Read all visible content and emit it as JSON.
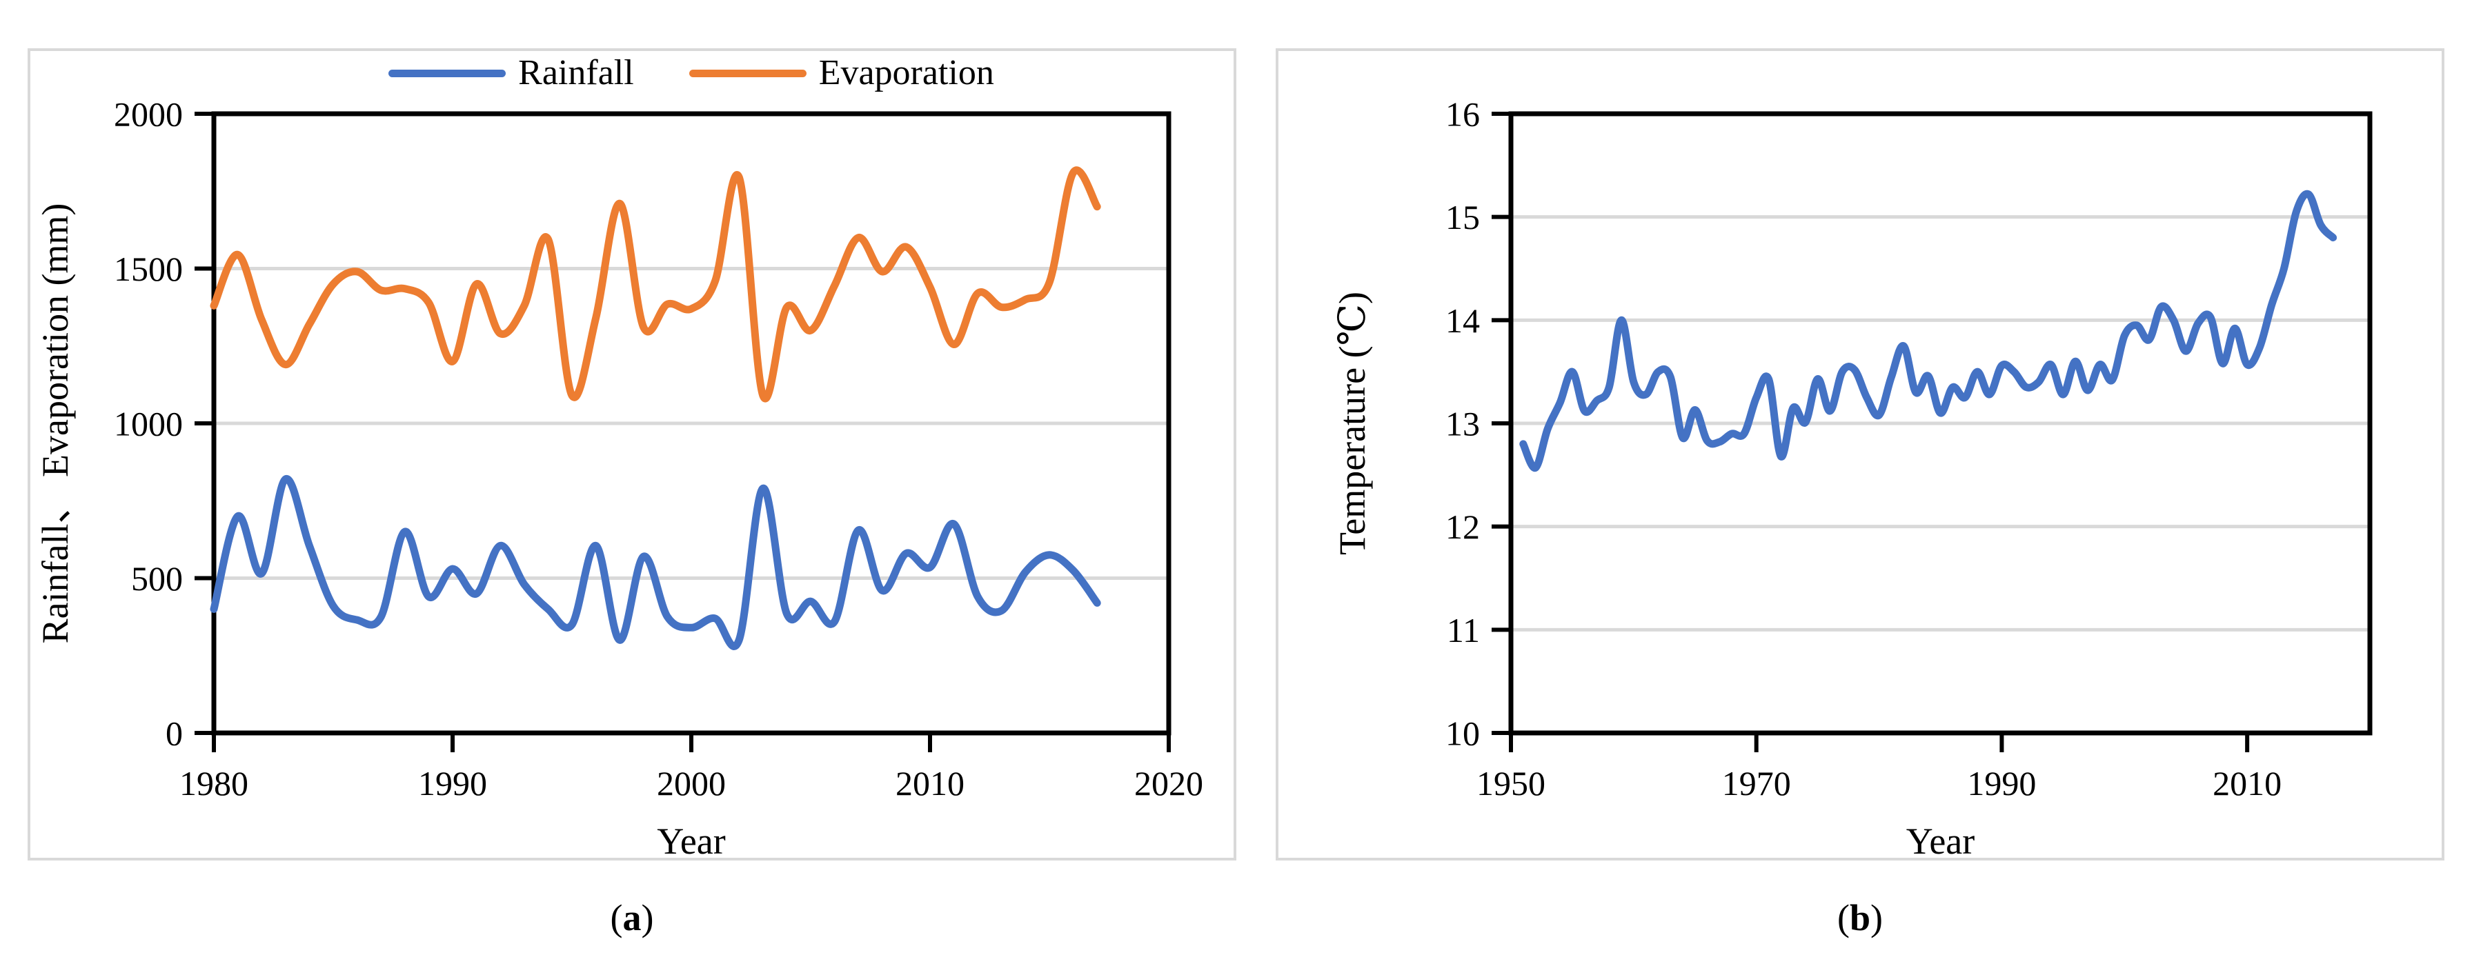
{
  "figure": {
    "background": "#ffffff",
    "panel_border_color": "#D9D9D9",
    "axis_color": "#000000",
    "grid_color": "#D9D9D9",
    "panels": [
      {
        "id": "a",
        "caption": {
          "open": "(",
          "letter": "a",
          "close": ")"
        }
      },
      {
        "id": "b",
        "caption": {
          "open": "(",
          "letter": "b",
          "close": ")"
        }
      }
    ],
    "legend": {
      "items": [
        {
          "label": "Rainfall",
          "color": "#4472C4"
        },
        {
          "label": "Evaporation",
          "color": "#ED7D31"
        }
      ]
    }
  },
  "chart_data": [
    {
      "type": "line",
      "title": "",
      "xlabel": "Year",
      "ylabel": "Rainfall、 Evaporation (mm)",
      "xlim": [
        1980,
        2020
      ],
      "ylim": [
        0,
        2000
      ],
      "xticks": [
        1980,
        1990,
        2000,
        2010,
        2020
      ],
      "yticks": [
        0,
        500,
        1000,
        1500,
        2000
      ],
      "grid": "horizontal",
      "legend_position": "top-center",
      "x": [
        1980,
        1981,
        1982,
        1983,
        1984,
        1985,
        1986,
        1987,
        1988,
        1989,
        1990,
        1991,
        1992,
        1993,
        1994,
        1995,
        1996,
        1997,
        1998,
        1999,
        2000,
        2001,
        2002,
        2003,
        2004,
        2005,
        2006,
        2007,
        2008,
        2009,
        2010,
        2011,
        2012,
        2013,
        2014,
        2015,
        2016,
        2017
      ],
      "series": [
        {
          "name": "Rainfall",
          "color": "#4472C4",
          "values": [
            400,
            700,
            515,
            820,
            605,
            410,
            365,
            375,
            650,
            440,
            530,
            450,
            605,
            480,
            400,
            350,
            605,
            300,
            570,
            375,
            340,
            370,
            300,
            790,
            385,
            425,
            360,
            655,
            460,
            580,
            535,
            675,
            440,
            395,
            520,
            575,
            525,
            420
          ]
        },
        {
          "name": "Evaporation",
          "color": "#ED7D31",
          "values": [
            1380,
            1545,
            1335,
            1190,
            1320,
            1450,
            1490,
            1430,
            1435,
            1390,
            1200,
            1450,
            1290,
            1380,
            1595,
            1090,
            1340,
            1710,
            1310,
            1385,
            1370,
            1460,
            1795,
            1090,
            1375,
            1300,
            1445,
            1600,
            1490,
            1570,
            1440,
            1255,
            1420,
            1375,
            1400,
            1455,
            1810,
            1700
          ]
        }
      ]
    },
    {
      "type": "line",
      "title": "",
      "xlabel": "Year",
      "ylabel": "Temperature (℃)",
      "xlim": [
        1950,
        2020
      ],
      "ylim": [
        10,
        16
      ],
      "xticks": [
        1950,
        1970,
        1990,
        2010
      ],
      "yticks": [
        10,
        11,
        12,
        13,
        14,
        15,
        16
      ],
      "grid": "horizontal",
      "legend_position": "none",
      "x": [
        1951,
        1952,
        1953,
        1954,
        1955,
        1956,
        1957,
        1958,
        1959,
        1960,
        1961,
        1962,
        1963,
        1964,
        1965,
        1966,
        1967,
        1968,
        1969,
        1970,
        1971,
        1972,
        1973,
        1974,
        1975,
        1976,
        1977,
        1978,
        1979,
        1980,
        1981,
        1982,
        1983,
        1984,
        1985,
        1986,
        1987,
        1988,
        1989,
        1990,
        1991,
        1992,
        1993,
        1994,
        1995,
        1996,
        1997,
        1998,
        1999,
        2000,
        2001,
        2002,
        2003,
        2004,
        2005,
        2006,
        2007,
        2008,
        2009,
        2010,
        2011,
        2012,
        2013,
        2014,
        2015,
        2016,
        2017
      ],
      "series": [
        {
          "name": "Temperature",
          "color": "#4472C4",
          "values": [
            12.8,
            12.57,
            12.95,
            13.2,
            13.5,
            13.12,
            13.22,
            13.35,
            14.0,
            13.4,
            13.28,
            13.5,
            13.45,
            12.86,
            13.13,
            12.83,
            12.82,
            12.9,
            12.9,
            13.25,
            13.43,
            12.68,
            13.15,
            13.01,
            13.43,
            13.12,
            13.5,
            13.52,
            13.25,
            13.08,
            13.45,
            13.75,
            13.3,
            13.46,
            13.1,
            13.35,
            13.25,
            13.5,
            13.28,
            13.56,
            13.5,
            13.35,
            13.4,
            13.57,
            13.28,
            13.6,
            13.32,
            13.57,
            13.42,
            13.85,
            13.95,
            13.81,
            14.13,
            14.0,
            13.7,
            13.97,
            14.03,
            13.58,
            13.92,
            13.57,
            13.73,
            14.15,
            14.5,
            15.05,
            15.22,
            14.92,
            14.8
          ]
        }
      ]
    }
  ]
}
